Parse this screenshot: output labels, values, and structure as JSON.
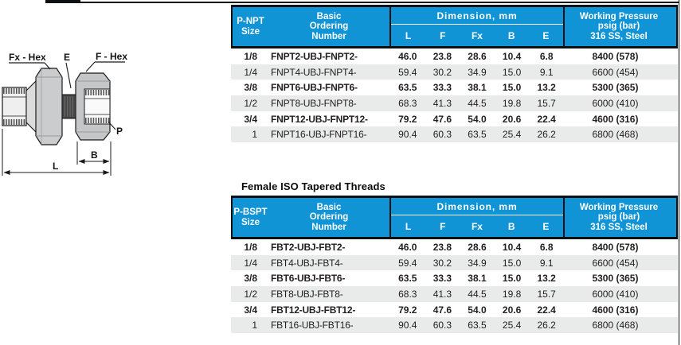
{
  "colors": {
    "header_blue": "#1094D5",
    "border_dark": "#0D1013",
    "row_alt": "#E9EAEA",
    "text": "#221E1F"
  },
  "diagram": {
    "labels": {
      "fx_hex": "Fx - Hex",
      "e": "E",
      "f_hex": "F - Hex",
      "p": "P",
      "b": "B",
      "l": "L"
    }
  },
  "section_title": "Female ISO Tapered Threads",
  "tables": [
    {
      "size_header": [
        "P-NPT",
        "Size"
      ],
      "ordering_header": [
        "Basic",
        "Ordering",
        "Number"
      ],
      "dimension_header": "Dimension, mm",
      "dim_cols": [
        "L",
        "F",
        "Fx",
        "B",
        "E"
      ],
      "pressure_header": [
        "Working Pressure",
        "psig (bar)",
        "316 SS, Steel"
      ],
      "rows": [
        [
          "1/8",
          "FNPT2-UBJ-FNPT2-",
          "46.0",
          "23.8",
          "28.6",
          "10.4",
          "6.8",
          "8400 (578)"
        ],
        [
          "1/4",
          "FNPT4-UBJ-FNPT4-",
          "59.4",
          "30.2",
          "34.9",
          "15.0",
          "9.1",
          "6600 (454)"
        ],
        [
          "3/8",
          "FNPT6-UBJ-FNPT6-",
          "63.5",
          "33.3",
          "38.1",
          "15.0",
          "13.2",
          "5300 (365)"
        ],
        [
          "1/2",
          "FNPT8-UBJ-FNPT8-",
          "68.3",
          "41.3",
          "44.5",
          "19.8",
          "15.7",
          "6000 (410)"
        ],
        [
          "3/4",
          "FNPT12-UBJ-FNPT12-",
          "79.2",
          "47.6",
          "54.0",
          "20.6",
          "22.4",
          "4600 (316)"
        ],
        [
          "1",
          "FNPT16-UBJ-FNPT16-",
          "90.4",
          "60.3",
          "63.5",
          "25.4",
          "26.2",
          "6800 (468)"
        ]
      ]
    },
    {
      "size_header": [
        "P-BSPT",
        "Size"
      ],
      "ordering_header": [
        "Basic",
        "Ordering",
        "Number"
      ],
      "dimension_header": "Dimension, mm",
      "dim_cols": [
        "L",
        "F",
        "Fx",
        "B",
        "E"
      ],
      "pressure_header": [
        "Working Pressure",
        "psig (bar)",
        "316 SS, Steel"
      ],
      "rows": [
        [
          "1/8",
          "FBT2-UBJ-FBT2-",
          "46.0",
          "23.8",
          "28.6",
          "10.4",
          "6.8",
          "8400 (578)"
        ],
        [
          "1/4",
          "FBT4-UBJ-FBT4-",
          "59.4",
          "30.2",
          "34.9",
          "15.0",
          "9.1",
          "6600 (454)"
        ],
        [
          "3/8",
          "FBT6-UBJ-FBT6-",
          "63.5",
          "33.3",
          "38.1",
          "15.0",
          "13.2",
          "5300 (365)"
        ],
        [
          "1/2",
          "FBT8-UBJ-FBT8-",
          "68.3",
          "41.3",
          "44.5",
          "19.8",
          "15.7",
          "6000 (410)"
        ],
        [
          "3/4",
          "FBT12-UBJ-FBT12-",
          "79.2",
          "47.6",
          "54.0",
          "20.6",
          "22.4",
          "4600 (316)"
        ],
        [
          "1",
          "FBT16-UBJ-FBT16-",
          "90.4",
          "60.3",
          "63.5",
          "25.4",
          "26.2",
          "6800 (468)"
        ]
      ]
    }
  ]
}
